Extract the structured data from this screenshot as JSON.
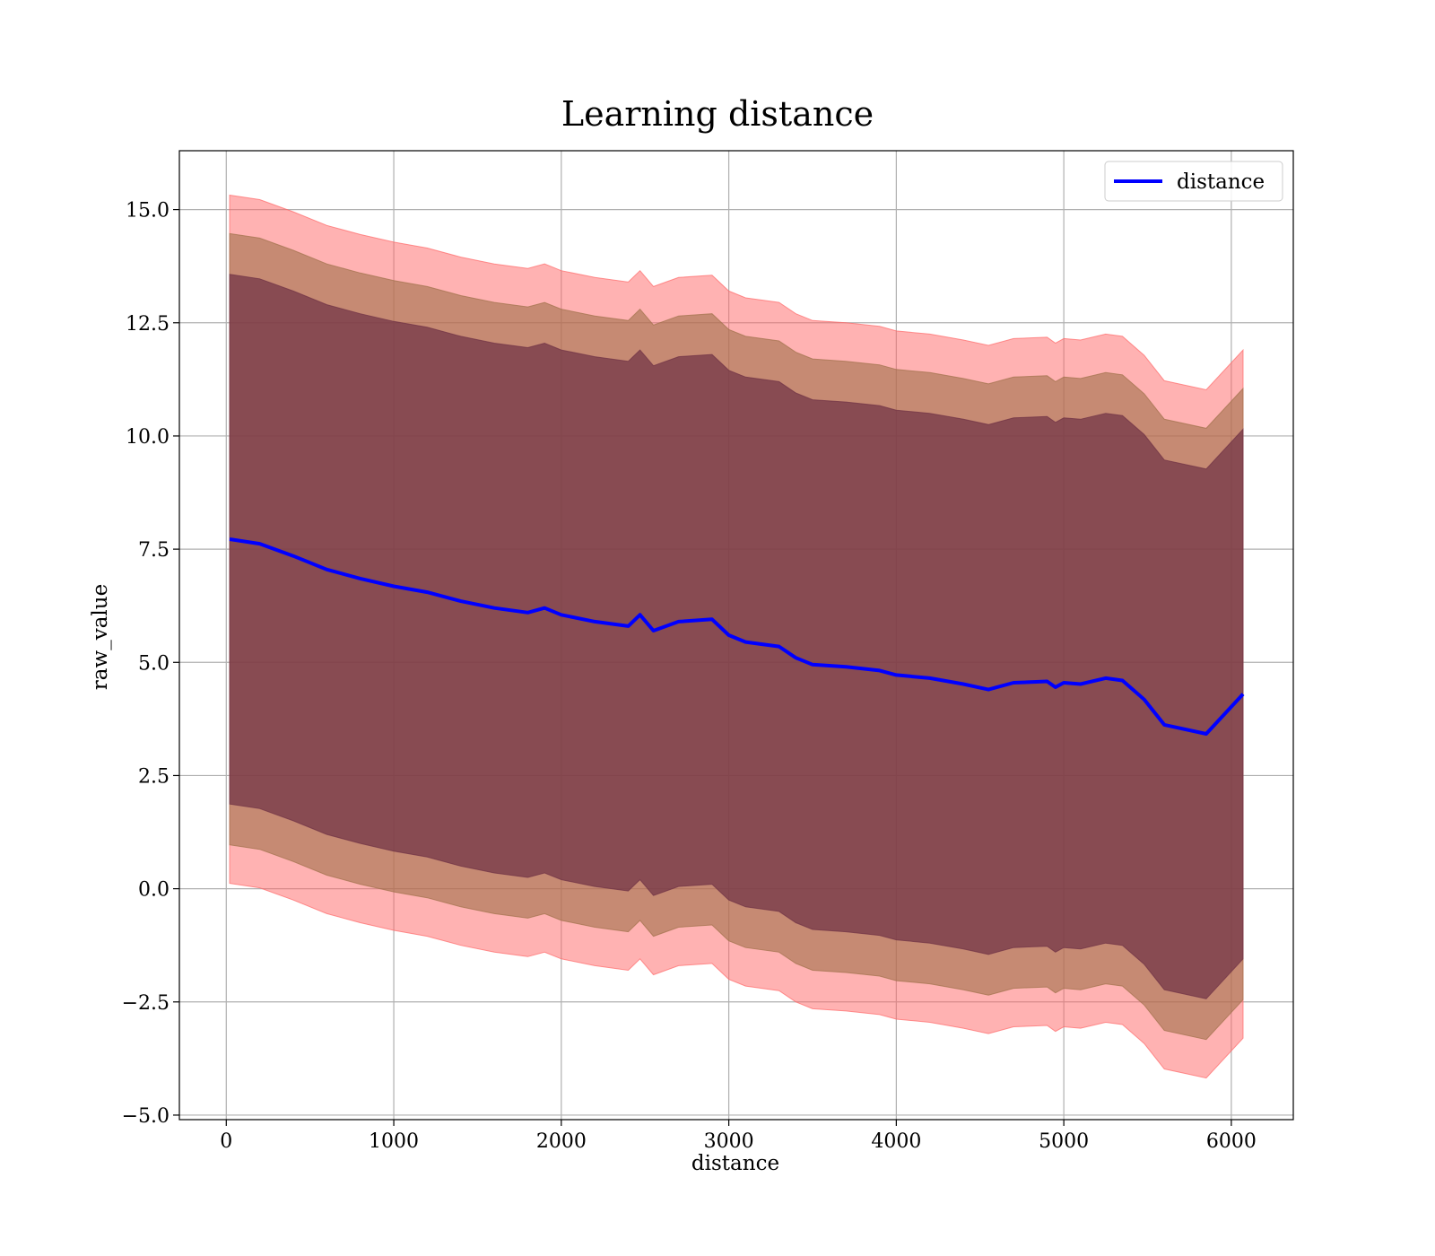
{
  "chart_data": {
    "type": "line",
    "title": "Learning distance",
    "xlabel": "distance",
    "ylabel": "raw_value",
    "xlim": [
      -280,
      6370
    ],
    "ylim": [
      -5.1,
      16.3
    ],
    "x_ticks": [
      0,
      1000,
      2000,
      3000,
      4000,
      5000,
      6000
    ],
    "x_tick_labels": [
      "0",
      "1000",
      "2000",
      "3000",
      "4000",
      "5000",
      "6000"
    ],
    "y_ticks": [
      -5.0,
      -2.5,
      0.0,
      2.5,
      5.0,
      7.5,
      10.0,
      12.5,
      15.0
    ],
    "y_tick_labels": [
      "−5.0",
      "−2.5",
      "0.0",
      "2.5",
      "5.0",
      "7.5",
      "10.0",
      "12.5",
      "15.0"
    ],
    "grid": true,
    "legend": {
      "position": "top-right",
      "entries": [
        "distance"
      ]
    },
    "colors": {
      "line": "#0000ff",
      "band_outer": "#ff6666",
      "band_middle": "#a0704a",
      "band_inner": "#6e3045"
    },
    "x": [
      20,
      200,
      400,
      600,
      800,
      1000,
      1200,
      1400,
      1600,
      1800,
      1900,
      2000,
      2200,
      2400,
      2470,
      2550,
      2700,
      2900,
      3000,
      3100,
      3300,
      3400,
      3500,
      3700,
      3900,
      4000,
      4200,
      4400,
      4550,
      4700,
      4900,
      4950,
      5000,
      5100,
      5250,
      5350,
      5480,
      5600,
      5850,
      6070
    ],
    "series": [
      {
        "name": "distance",
        "values": [
          7.72,
          7.62,
          7.35,
          7.05,
          6.85,
          6.68,
          6.55,
          6.35,
          6.2,
          6.1,
          6.2,
          6.05,
          5.9,
          5.8,
          6.05,
          5.7,
          5.9,
          5.95,
          5.6,
          5.45,
          5.35,
          5.1,
          4.95,
          4.9,
          4.82,
          4.72,
          4.65,
          4.52,
          4.4,
          4.55,
          4.58,
          4.45,
          4.55,
          4.52,
          4.65,
          4.6,
          4.18,
          3.62,
          3.42,
          4.3
        ]
      }
    ],
    "band_half_widths": [
      5.85,
      6.75,
      7.6
    ]
  }
}
